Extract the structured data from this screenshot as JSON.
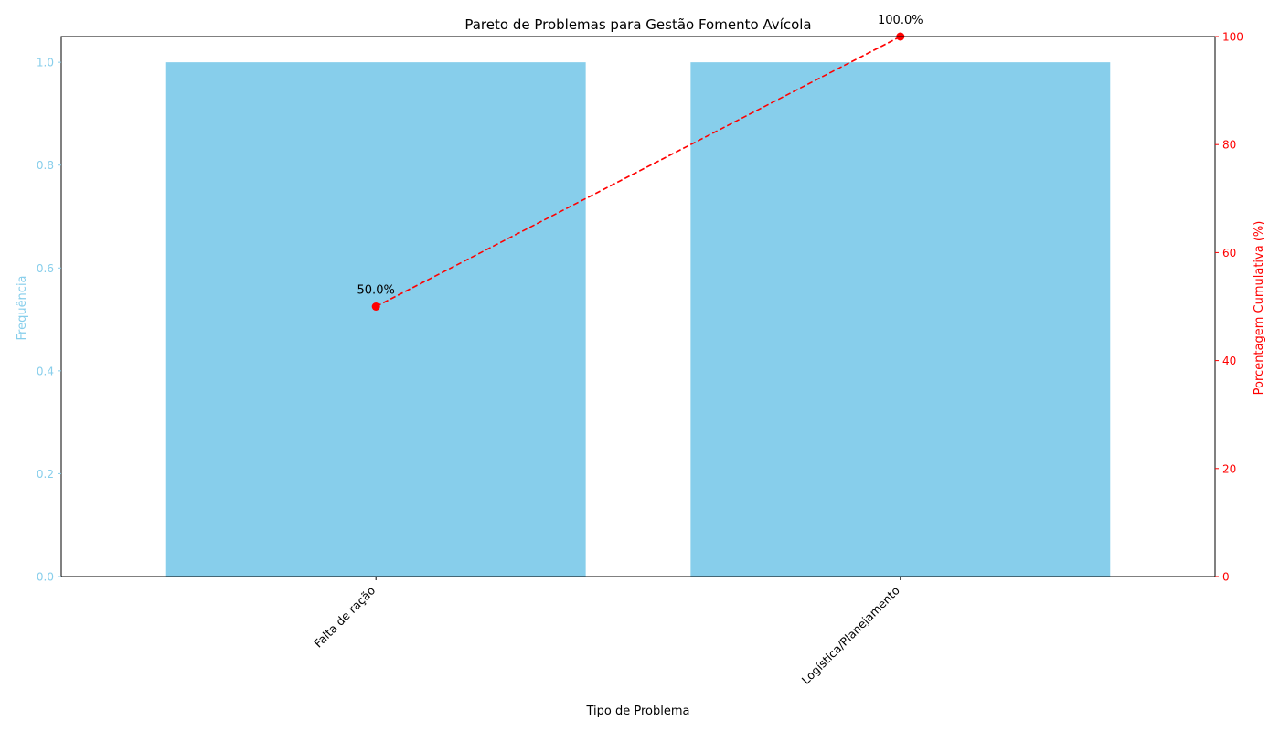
{
  "chart_data": {
    "type": "bar",
    "title": "Pareto de Problemas para Gestão Fomento Avícola",
    "xlabel": "Tipo de Problema",
    "ylabel": "Frequência",
    "y2label": "Porcentagem Cumulativa (%)",
    "categories": [
      "Falta de ração",
      "Logística/Planejamento"
    ],
    "values": [
      1,
      1
    ],
    "ylim": [
      0,
      1.05
    ],
    "yticks": [
      0.0,
      0.2,
      0.4,
      0.6,
      0.8,
      1.0
    ],
    "ytick_labels": [
      "0.0",
      "0.2",
      "0.4",
      "0.6",
      "0.8",
      "1.0"
    ],
    "cumulative": {
      "type": "line",
      "values": [
        50.0,
        100.0
      ],
      "labels": [
        "50.0%",
        "100.0%"
      ],
      "ylim": [
        0,
        100
      ],
      "yticks": [
        0,
        20,
        40,
        60,
        80,
        100
      ],
      "ytick_labels": [
        "0",
        "20",
        "40",
        "60",
        "80",
        "100"
      ]
    },
    "grid": false,
    "colors": {
      "bar": "#87CEEB",
      "line": "#FF0000",
      "axis": "#000000",
      "text": "#000000"
    }
  }
}
